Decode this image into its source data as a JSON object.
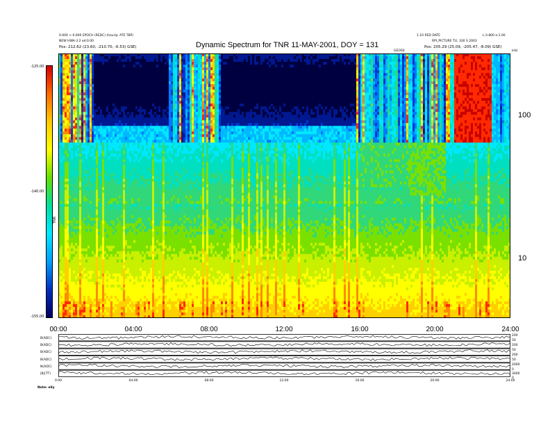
{
  "header": {
    "left_lines": [
      "0.000 < 0.000 EPOCH (REDC) (hourly: ATE TBP)",
      "NEW HWA-3.2 ed:0.00",
      "Pos: 212.62 (23.60, -210.70, -6.53) GSE)"
    ],
    "right_lines": [
      "1.10 RED DATE",
      "L:3.800 e:1.00",
      "RPI_PICTURE TU, 330 S 2003",
      "Pos: 205.29 (25.09, -205.47, -8.09) GSE)"
    ],
    "right_unit": "kHz",
    "marker_label": "GEOS0",
    "footer_left": "Note: elly"
  },
  "chart_data": {
    "type": "heatmap",
    "title": "Dynamic Spectrum for TNR 11-MAY-2001, DOY = 131",
    "xlabel": "",
    "ylabel": "",
    "x_ticks": [
      "00:00",
      "04:00",
      "08:00",
      "12:00",
      "16:00",
      "20:00",
      "24:00"
    ],
    "xlim_hours": [
      0,
      24
    ],
    "y_scale": "log",
    "y_ticks_right": [
      "100",
      "10"
    ],
    "colorbar": {
      "label": "TNR",
      "ticks": [
        "-125.00",
        "-140.00",
        "-155.00"
      ],
      "colors": [
        "#d40000",
        "#ff6a00",
        "#ffcc00",
        "#ffff00",
        "#66e000",
        "#00e0a0",
        "#00e8ff",
        "#00a0ff",
        "#0030c0",
        "#000060"
      ]
    },
    "stack_panels": [
      {
        "label": "B(ADC)"
      },
      {
        "label": "B(ADC)"
      },
      {
        "label": "B(ADC)"
      },
      {
        "label": "B(ADC)"
      },
      {
        "label": "N(ADC)"
      },
      {
        "label": "|B|(TT)"
      }
    ],
    "stack_right_ticks": [
      "200",
      "50",
      "200",
      "50",
      "200",
      "50",
      "2000",
      "0",
      "3000",
      "0"
    ],
    "stack_x_ticks": [
      "0:00",
      "04:00",
      "08:00",
      "12:00",
      "16:00",
      "20:00",
      "24:00"
    ]
  }
}
